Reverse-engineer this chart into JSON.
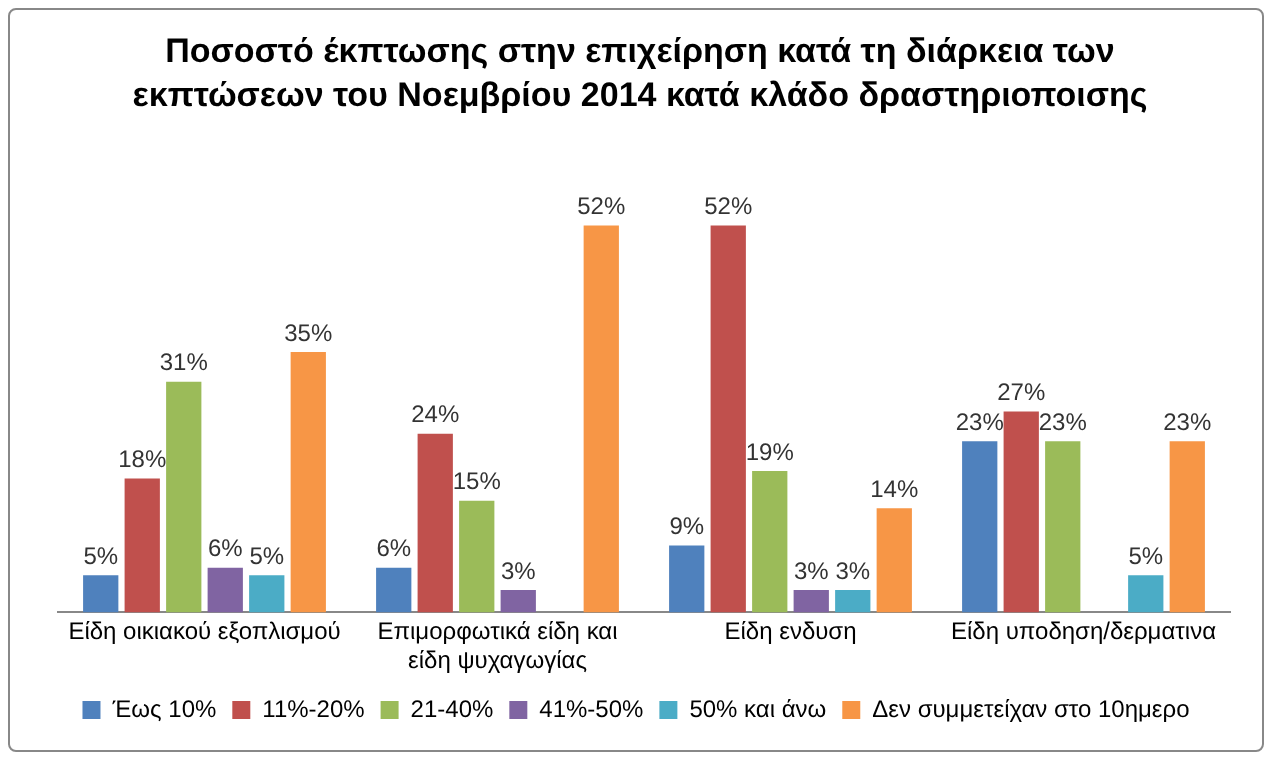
{
  "chart_data": {
    "type": "bar",
    "title": "Ποσοστό έκπτωσης στην επιχείρηση κατά τη διάρκεια των εκπτώσεων του Νοεμβρίου 2014 κατά κλάδο δραστηριοποισης",
    "categories": [
      "Είδη οικιακού εξοπλισμού",
      "Επιμορφωτικά είδη και είδη ψυχαγωγίας",
      "Είδη ενδυση",
      "Είδη υποδηση/δερματινα"
    ],
    "series": [
      {
        "name": "Έως 10%",
        "color": "#4f81bd",
        "values": [
          5,
          6,
          9,
          23
        ],
        "value_labels": [
          "5%",
          "6%",
          "9%",
          "23%"
        ]
      },
      {
        "name": "11%-20%",
        "color": "#c0504d",
        "values": [
          18,
          24,
          52,
          27
        ],
        "value_labels": [
          "18%",
          "24%",
          "52%",
          "27%"
        ]
      },
      {
        "name": "21-40%",
        "color": "#9bbb59",
        "values": [
          31,
          15,
          19,
          23
        ],
        "value_labels": [
          "31%",
          "15%",
          "19%",
          "23%"
        ]
      },
      {
        "name": "41%-50%",
        "color": "#8064a2",
        "values": [
          6,
          3,
          3,
          null
        ],
        "value_labels": [
          "6%",
          "3%",
          "3%",
          null
        ]
      },
      {
        "name": "50% και άνω",
        "color": "#4bacc6",
        "values": [
          5,
          null,
          3,
          5
        ],
        "value_labels": [
          "5%",
          null,
          "3%",
          "5%"
        ]
      },
      {
        "name": "Δεν συμμετείχαν στο 10ημερο",
        "color": "#f79646",
        "values": [
          35,
          52,
          14,
          23
        ],
        "value_labels": [
          "35%",
          "52%",
          "14%",
          "23%"
        ]
      }
    ],
    "relative": false,
    "grid": false,
    "legend": "bottom"
  }
}
